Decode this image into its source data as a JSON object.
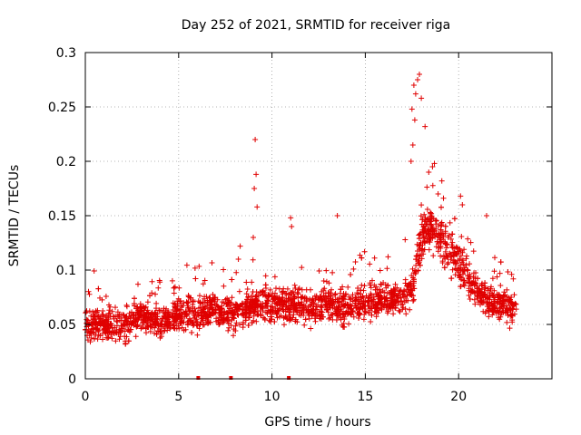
{
  "chart_data": {
    "type": "scatter",
    "title": "Day 252 of 2021, SRMTID for receiver riga",
    "xlabel": "GPS time / hours",
    "ylabel": "SRMTID / TECUs",
    "xlim": [
      0,
      25
    ],
    "ylim": [
      0,
      0.3
    ],
    "x_ticks": [
      0,
      5,
      10,
      15,
      20
    ],
    "x_tick_labels": [
      "0",
      "5",
      "10",
      "15",
      "20"
    ],
    "y_ticks": [
      0,
      0.05,
      0.1,
      0.15,
      0.2,
      0.25,
      0.3
    ],
    "y_tick_labels": [
      "0",
      "0.05",
      "0.1",
      "0.15",
      "0.2",
      "0.25",
      "0.3"
    ],
    "grid": true,
    "marker": "+",
    "colors": {
      "series": "#e00000",
      "grid": "#a0a0a0",
      "axis": "#000000"
    },
    "series": [
      {
        "name": "SRMTID",
        "x_range": [
          0,
          23.1
        ],
        "point_count": 2600,
        "baseline_profile": [
          [
            0.0,
            0.05
          ],
          [
            2.0,
            0.047
          ],
          [
            3.0,
            0.058
          ],
          [
            4.0,
            0.052
          ],
          [
            5.0,
            0.06
          ],
          [
            6.0,
            0.058
          ],
          [
            7.0,
            0.065
          ],
          [
            8.0,
            0.06
          ],
          [
            9.0,
            0.068
          ],
          [
            10.0,
            0.07
          ],
          [
            11.0,
            0.068
          ],
          [
            12.0,
            0.065
          ],
          [
            13.0,
            0.068
          ],
          [
            14.0,
            0.066
          ],
          [
            15.0,
            0.07
          ],
          [
            16.0,
            0.075
          ],
          [
            17.0,
            0.072
          ],
          [
            17.5,
            0.08
          ],
          [
            18.0,
            0.13
          ],
          [
            18.5,
            0.14
          ],
          [
            19.0,
            0.13
          ],
          [
            19.5,
            0.115
          ],
          [
            20.0,
            0.11
          ],
          [
            20.5,
            0.095
          ],
          [
            21.0,
            0.078
          ],
          [
            22.0,
            0.07
          ],
          [
            23.1,
            0.06
          ]
        ],
        "notable_points": [
          [
            9.1,
            0.22
          ],
          [
            9.15,
            0.188
          ],
          [
            9.05,
            0.175
          ],
          [
            9.2,
            0.158
          ],
          [
            9.0,
            0.13
          ],
          [
            8.3,
            0.122
          ],
          [
            8.2,
            0.11
          ],
          [
            11.0,
            0.148
          ],
          [
            11.05,
            0.14
          ],
          [
            13.5,
            0.15
          ],
          [
            17.6,
            0.27
          ],
          [
            17.8,
            0.275
          ],
          [
            17.9,
            0.28
          ],
          [
            17.7,
            0.262
          ],
          [
            18.0,
            0.258
          ],
          [
            17.5,
            0.248
          ],
          [
            17.65,
            0.238
          ],
          [
            18.2,
            0.232
          ],
          [
            17.55,
            0.215
          ],
          [
            17.45,
            0.2
          ],
          [
            18.6,
            0.195
          ],
          [
            18.7,
            0.198
          ],
          [
            18.4,
            0.19
          ],
          [
            19.1,
            0.182
          ],
          [
            18.9,
            0.17
          ],
          [
            20.1,
            0.168
          ],
          [
            20.2,
            0.16
          ],
          [
            21.5,
            0.15
          ]
        ],
        "zero_points": [
          6.05,
          7.8,
          10.9
        ]
      }
    ]
  }
}
